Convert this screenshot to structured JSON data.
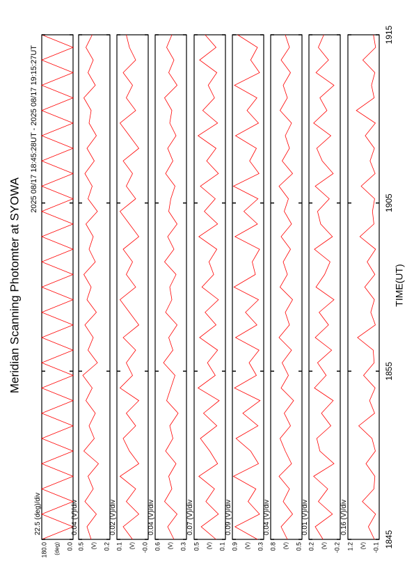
{
  "chart_data": {
    "type": "line",
    "title": "Meridian Scanning Photomter at SYOWA",
    "subtitle": "2025 08/17 18:45:28UT - 2025 08/17 19:15:27UT",
    "xlabel": "TIME(UT)",
    "xlim": [
      0,
      30
    ],
    "xticks": [
      {
        "value": 0,
        "label": "1845"
      },
      {
        "value": 10,
        "label": "1855"
      },
      {
        "value": 20,
        "label": "1905"
      },
      {
        "value": 30,
        "label": "1915"
      }
    ],
    "x": [
      0,
      0.75,
      1.5,
      2.25,
      3,
      3.75,
      4.5,
      5.25,
      6,
      6.75,
      7.5,
      8.25,
      9,
      9.75,
      10.5,
      11.25,
      12,
      12.75,
      13.5,
      14.25,
      15,
      15.75,
      16.5,
      17.25,
      18,
      18.75,
      19.5,
      20.25,
      21,
      21.75,
      22.5,
      23.25,
      24,
      24.75,
      25.5,
      26.25,
      27,
      27.75,
      28.5,
      29.25,
      30
    ],
    "panels": [
      {
        "scale_label": "22.5 (deg)/div",
        "unit_label": "(deg)",
        "color": "#ff0000",
        "ylim": [
          0,
          180
        ],
        "yticks": [
          {
            "value": 180,
            "label": "180.0"
          },
          {
            "value": 0,
            "label": "0.0"
          }
        ],
        "values": [
          180,
          0,
          180,
          0,
          180,
          0,
          180,
          0,
          180,
          0,
          180,
          0,
          180,
          0,
          180,
          0,
          180,
          0,
          180,
          0,
          180,
          0,
          180,
          0,
          180,
          0,
          180,
          0,
          180,
          0,
          180,
          0,
          180,
          0,
          180,
          0,
          180,
          0,
          180,
          0,
          180
        ]
      },
      {
        "scale_label": "0.04 (V)/div",
        "unit_label": "(V)",
        "color": "#ff0000",
        "ylim": [
          0.2,
          0.5
        ],
        "yticks": [
          0.5,
          0.2
        ],
        "values": [
          0.38,
          0.42,
          0.33,
          0.44,
          0.36,
          0.41,
          0.31,
          0.45,
          0.35,
          0.4,
          0.34,
          0.43,
          0.37,
          0.46,
          0.32,
          0.41,
          0.36,
          0.44,
          0.33,
          0.42,
          0.38,
          0.45,
          0.34,
          0.4,
          0.36,
          0.43,
          0.32,
          0.41,
          0.37,
          0.44,
          0.35,
          0.42,
          0.33,
          0.4,
          0.38,
          0.45,
          0.34,
          0.41,
          0.36,
          0.43,
          0.37
        ]
      },
      {
        "scale_label": "0.02 (V)/div",
        "unit_label": "(V)",
        "color": "#ff0000",
        "ylim": [
          0,
          0.1
        ],
        "yticks": [
          0.1,
          {
            "value": 0,
            "label": "-0.0"
          }
        ],
        "values": [
          0.05,
          0.08,
          0.03,
          0.07,
          0.04,
          0.09,
          0.03,
          0.06,
          0.08,
          0.04,
          0.07,
          0.03,
          0.09,
          0.05,
          0.07,
          0.04,
          0.08,
          0.03,
          0.06,
          0.09,
          0.04,
          0.07,
          0.05,
          0.08,
          0.03,
          0.06,
          0.09,
          0.04,
          0.07,
          0.05,
          0.08,
          0.03,
          0.06,
          0.09,
          0.04,
          0.07,
          0.05,
          0.08,
          0.04,
          0.06,
          0.07
        ]
      },
      {
        "scale_label": "0.04 (V)/div",
        "unit_label": "(V)",
        "color": "#ff0000",
        "ylim": [
          0.3,
          0.6
        ],
        "yticks": [
          0.6,
          0.3
        ],
        "values": [
          0.42,
          0.48,
          0.39,
          0.51,
          0.44,
          0.47,
          0.4,
          0.5,
          0.43,
          0.46,
          0.38,
          0.49,
          0.45,
          0.41,
          0.52,
          0.43,
          0.47,
          0.39,
          0.5,
          0.44,
          0.46,
          0.4,
          0.51,
          0.42,
          0.48,
          0.39,
          0.47,
          0.45,
          0.41,
          0.5,
          0.43,
          0.48,
          0.4,
          0.46,
          0.44,
          0.51,
          0.39,
          0.47,
          0.42,
          0.49,
          0.44
        ]
      },
      {
        "scale_label": "0.07 (V)/div",
        "unit_label": "(V)",
        "color": "#ff0000",
        "ylim": [
          0.1,
          0.5
        ],
        "yticks": [
          0.5,
          0.1
        ],
        "values": [
          0.22,
          0.41,
          0.19,
          0.35,
          0.24,
          0.44,
          0.2,
          0.3,
          0.42,
          0.21,
          0.38,
          0.18,
          0.45,
          0.23,
          0.33,
          0.2,
          0.43,
          0.22,
          0.36,
          0.19,
          0.4,
          0.25,
          0.31,
          0.21,
          0.44,
          0.2,
          0.37,
          0.23,
          0.42,
          0.19,
          0.34,
          0.22,
          0.45,
          0.2,
          0.39,
          0.24,
          0.32,
          0.21,
          0.43,
          0.22,
          0.36
        ]
      },
      {
        "scale_label": "0.09 (V)/div",
        "unit_label": "(V)",
        "color": "#ff0000",
        "ylim": [
          0.3,
          0.9
        ],
        "yticks": [
          0.9,
          0.3
        ],
        "values": [
          0.42,
          0.85,
          0.38,
          0.6,
          0.45,
          0.88,
          0.4,
          0.55,
          0.83,
          0.41,
          0.7,
          0.37,
          0.86,
          0.44,
          0.58,
          0.39,
          0.84,
          0.43,
          0.65,
          0.4,
          0.87,
          0.46,
          0.52,
          0.38,
          0.85,
          0.42,
          0.68,
          0.41,
          0.88,
          0.39,
          0.57,
          0.44,
          0.84,
          0.4,
          0.62,
          0.43,
          0.86,
          0.38,
          0.55,
          0.42,
          0.8
        ]
      },
      {
        "scale_label": "0.04 (V)/div",
        "unit_label": "(V)",
        "color": "#ff0000",
        "ylim": [
          0.5,
          0.8
        ],
        "yticks": [
          0.8,
          0.5
        ],
        "values": [
          0.64,
          0.7,
          0.59,
          0.68,
          0.62,
          0.72,
          0.6,
          0.66,
          0.71,
          0.61,
          0.67,
          0.58,
          0.7,
          0.63,
          0.69,
          0.6,
          0.72,
          0.62,
          0.66,
          0.59,
          0.71,
          0.64,
          0.68,
          0.61,
          0.7,
          0.6,
          0.67,
          0.63,
          0.72,
          0.59,
          0.69,
          0.62,
          0.66,
          0.6,
          0.71,
          0.64,
          0.68,
          0.61,
          0.7,
          0.62,
          0.66
        ]
      },
      {
        "scale_label": "0.01 (V)/div",
        "unit_label": "(V)",
        "color": "#ff0000",
        "ylim": [
          -0.2,
          0.2
        ],
        "yticks": [
          0.2,
          -0.2
        ],
        "values": [
          0.02,
          0.12,
          -0.1,
          0.08,
          -0.04,
          0.14,
          -0.12,
          0.06,
          0.1,
          -0.08,
          0.04,
          -0.11,
          0.13,
          -0.02,
          0.09,
          -0.09,
          0.12,
          -0.05,
          0.07,
          -0.12,
          0.11,
          0.0,
          -0.07,
          0.13,
          -0.1,
          0.05,
          0.09,
          -0.06,
          0.12,
          -0.11,
          0.03,
          0.1,
          -0.08,
          0.14,
          -0.03,
          0.06,
          -0.12,
          0.11,
          -0.05,
          0.08,
          0.01
        ]
      },
      {
        "scale_label": "0.16 (V)/div",
        "unit_label": "(V)",
        "color": "#ff0000",
        "ylim": [
          -0.1,
          1.2
        ],
        "yticks": [
          1.2,
          -0.1
        ],
        "values": [
          0.1,
          0.35,
          0.05,
          0.6,
          0.12,
          0.08,
          0.45,
          0.06,
          0.2,
          0.75,
          0.09,
          0.3,
          0.07,
          0.55,
          0.11,
          0.15,
          0.8,
          0.06,
          0.25,
          0.1,
          0.5,
          0.08,
          0.4,
          0.05,
          0.7,
          0.12,
          0.18,
          0.09,
          0.65,
          0.07,
          0.28,
          0.1,
          0.48,
          0.06,
          0.85,
          0.11,
          0.22,
          0.08,
          0.58,
          0.05,
          0.14
        ]
      }
    ]
  }
}
